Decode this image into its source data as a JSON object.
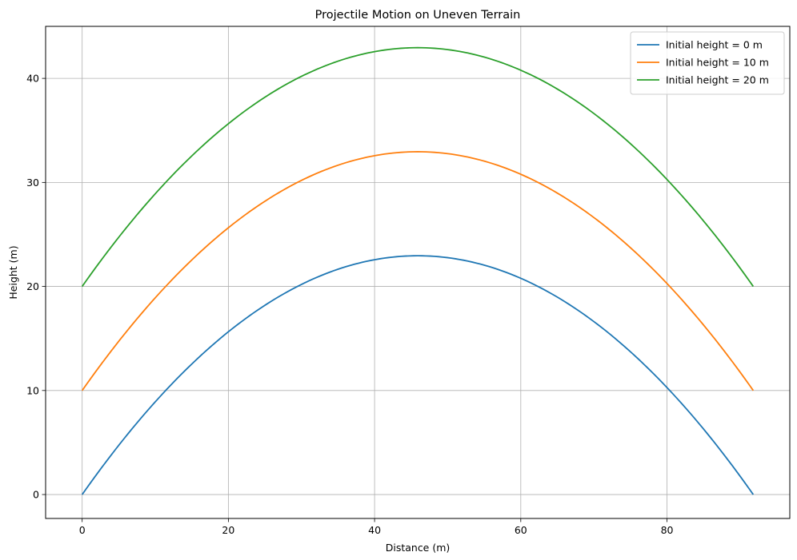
{
  "chart_data": {
    "type": "line",
    "title": "Projectile Motion on Uneven Terrain",
    "xlabel": "Distance (m)",
    "ylabel": "Height (m)",
    "xlim": [
      -5.0,
      96.8
    ],
    "ylim": [
      -2.3,
      45.0
    ],
    "xticks": [
      0,
      20,
      40,
      60,
      80
    ],
    "yticks": [
      0,
      10,
      20,
      30,
      40
    ],
    "grid": true,
    "legend_position": "top-right",
    "series": [
      {
        "name": "Initial height = 0 m",
        "color": "#1f77b4",
        "x_start": 0,
        "x_end": 91.8,
        "peak_x": 45.9,
        "peak_y": 22.95,
        "start_y": 0,
        "end_y": 0
      },
      {
        "name": "Initial height = 10 m",
        "color": "#ff7f0e",
        "x_start": 0,
        "x_end": 91.8,
        "peak_x": 45.9,
        "peak_y": 32.95,
        "start_y": 10,
        "end_y": 10
      },
      {
        "name": "Initial height = 20 m",
        "color": "#2ca02c",
        "x_start": 0,
        "x_end": 91.8,
        "peak_x": 45.9,
        "peak_y": 42.95,
        "start_y": 20,
        "end_y": 20
      }
    ]
  }
}
